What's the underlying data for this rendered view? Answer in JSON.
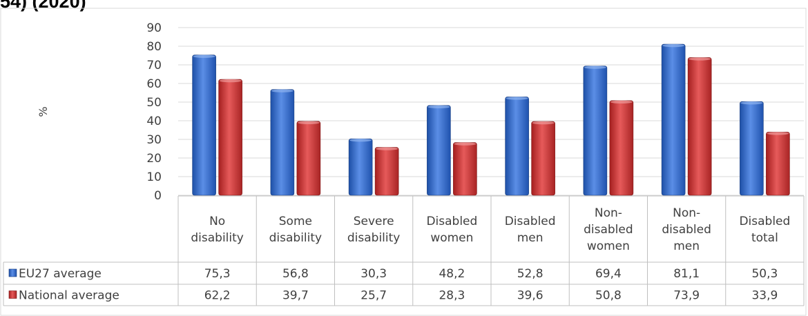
{
  "title_fragment": "54) (2020)",
  "chart_data": {
    "type": "bar",
    "ylabel": "%",
    "xlabel": "",
    "ylim": [
      0,
      90
    ],
    "yticks": [
      0,
      10,
      20,
      30,
      40,
      50,
      60,
      70,
      80,
      90
    ],
    "grid": true,
    "legend": "data-table-left",
    "categories": [
      [
        "No",
        "disability"
      ],
      [
        "Some",
        "disability"
      ],
      [
        "Severe",
        "disability"
      ],
      [
        "Disabled",
        "women"
      ],
      [
        "Disabled",
        "men"
      ],
      [
        "Non-",
        "disabled",
        "women"
      ],
      [
        "Non-",
        "disabled",
        "men"
      ],
      [
        "Disabled",
        "total"
      ]
    ],
    "series": [
      {
        "name": "EU27 average",
        "color": "#2f6fd1",
        "values": [
          75.3,
          56.8,
          30.3,
          48.2,
          52.8,
          69.4,
          81.1,
          50.3
        ],
        "labels": [
          "75,3",
          "56,8",
          "30,3",
          "48,2",
          "52,8",
          "69,4",
          "81,1",
          "50,3"
        ]
      },
      {
        "name": "National average",
        "color": "#d63434",
        "values": [
          62.2,
          39.7,
          25.7,
          28.3,
          39.6,
          50.8,
          73.9,
          33.9
        ],
        "labels": [
          "62,2",
          "39,7",
          "25,7",
          "28,3",
          "39,6",
          "50,8",
          "73,9",
          "33,9"
        ]
      }
    ]
  }
}
